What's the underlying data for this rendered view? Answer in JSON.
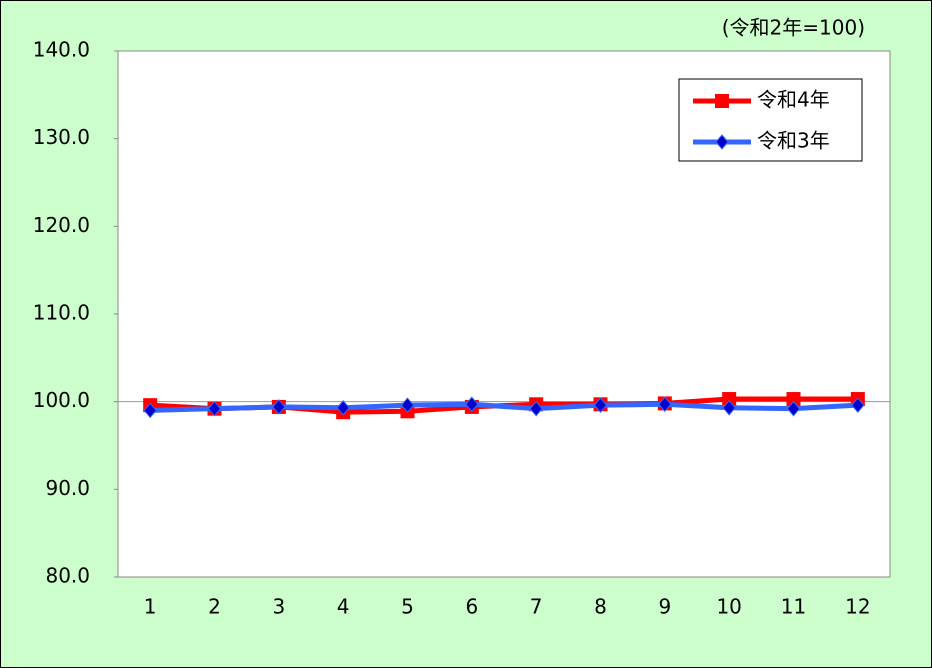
{
  "chart_data": {
    "type": "line",
    "annotation": "(令和2年=100)",
    "categories": [
      "1",
      "2",
      "3",
      "4",
      "5",
      "6",
      "7",
      "8",
      "9",
      "10",
      "11",
      "12"
    ],
    "series": [
      {
        "name": "令和4年",
        "color": "#ff0000",
        "marker": "square",
        "values": [
          99.6,
          99.2,
          99.4,
          98.8,
          98.9,
          99.4,
          99.7,
          99.7,
          99.8,
          100.3,
          100.3,
          100.3
        ]
      },
      {
        "name": "令和3年",
        "color": "#3366ff",
        "marker": "diamond",
        "values": [
          99.0,
          99.2,
          99.4,
          99.3,
          99.6,
          99.7,
          99.2,
          99.6,
          99.7,
          99.3,
          99.2,
          99.6
        ]
      }
    ],
    "ylim": [
      80,
      140
    ],
    "yticks": [
      {
        "value": 80,
        "label": "80.0"
      },
      {
        "value": 90,
        "label": "90.0"
      },
      {
        "value": 100,
        "label": "100.0"
      },
      {
        "value": 110,
        "label": "110.0"
      },
      {
        "value": 120,
        "label": "120.0"
      },
      {
        "value": 130,
        "label": "130.0"
      },
      {
        "value": 140,
        "label": "140.0"
      }
    ],
    "hline": 100,
    "legend": "upper right"
  }
}
